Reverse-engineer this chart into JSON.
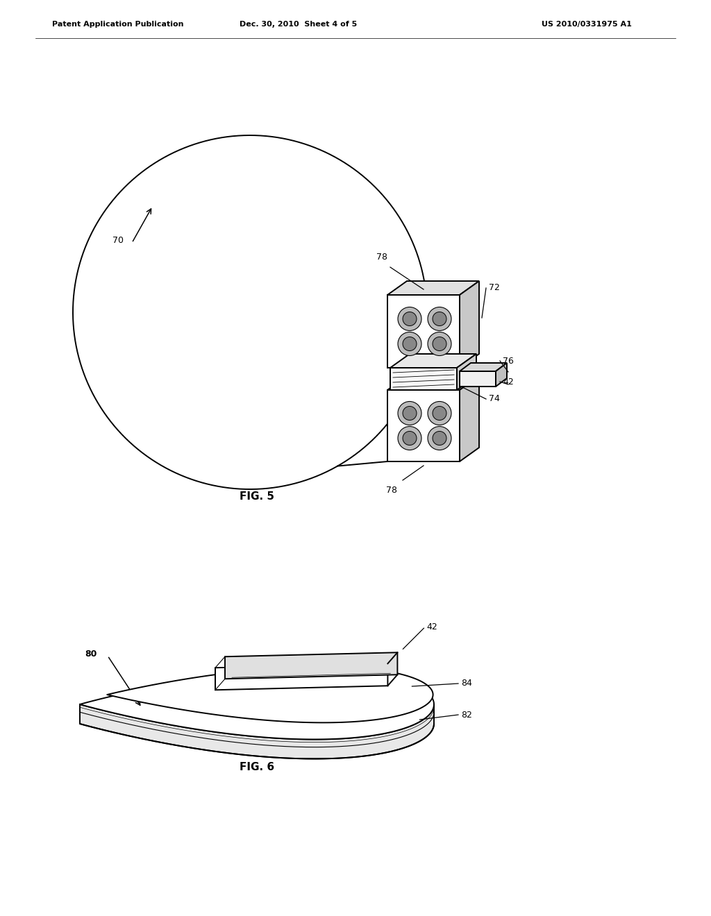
{
  "background_color": "#ffffff",
  "header_left": "Patent Application Publication",
  "header_middle": "Dec. 30, 2010  Sheet 4 of 5",
  "header_right": "US 2010/0331975 A1",
  "fig5_label": "FIG. 5",
  "fig6_label": "FIG. 6",
  "fig_width": 10.24,
  "fig_height": 13.2,
  "lw_main": 1.4,
  "lw_thin": 0.8,
  "fontsize_label": 9,
  "fontsize_fig": 11,
  "fontsize_header": 8
}
